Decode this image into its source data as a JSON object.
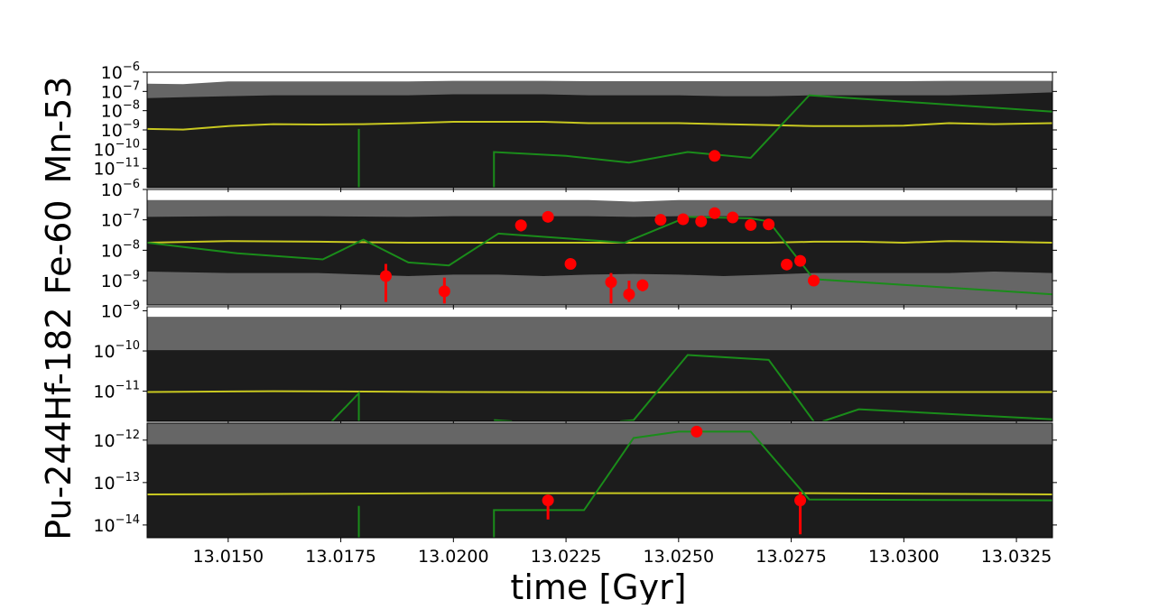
{
  "chart_data": {
    "type": "line",
    "xlabel": "time [Gyr]",
    "xlim": [
      13.0132,
      13.0333
    ],
    "x_ticks": [
      "13.0150",
      "13.0175",
      "13.0200",
      "13.0225",
      "13.0250",
      "13.0275",
      "13.0300",
      "13.0325"
    ],
    "x_tick_values": [
      13.015,
      13.0175,
      13.02,
      13.0225,
      13.025,
      13.0275,
      13.03,
      13.0325
    ],
    "y_scale": "log",
    "colors": {
      "outer_band": "#666666",
      "inner_band": "#1c1c1c",
      "median": "#c8c820",
      "model": "#1a8c1a",
      "data": "#ff0000"
    },
    "panels": [
      {
        "ylabel": "Mn-53",
        "ylim_exp": [
          -12,
          -6
        ],
        "yticks": [
          {
            "base": "10",
            "exp": "−6",
            "value": -6
          },
          {
            "base": "10",
            "exp": "−7",
            "value": -7
          },
          {
            "base": "10",
            "exp": "−8",
            "value": -8
          },
          {
            "base": "10",
            "exp": "−9",
            "value": -9
          },
          {
            "base": "10",
            "exp": "−10",
            "value": -10
          },
          {
            "base": "10",
            "exp": "−11",
            "value": -11
          }
        ],
        "band_x": [
          13.0132,
          13.014,
          13.015,
          13.016,
          13.017,
          13.018,
          13.019,
          13.02,
          13.021,
          13.022,
          13.023,
          13.024,
          13.025,
          13.026,
          13.027,
          13.028,
          13.029,
          13.03,
          13.031,
          13.032,
          13.0333
        ],
        "outer_upper": [
          -6.6,
          -6.62,
          -6.48,
          -6.48,
          -6.48,
          -6.48,
          -6.48,
          -6.45,
          -6.45,
          -6.45,
          -6.47,
          -6.47,
          -6.47,
          -6.47,
          -6.47,
          -6.47,
          -6.47,
          -6.47,
          -6.45,
          -6.45,
          -6.45
        ],
        "inner_upper": [
          -7.35,
          -7.3,
          -7.25,
          -7.2,
          -7.2,
          -7.2,
          -7.2,
          -7.15,
          -7.15,
          -7.15,
          -7.2,
          -7.2,
          -7.2,
          -7.25,
          -7.25,
          -7.2,
          -7.2,
          -7.2,
          -7.2,
          -7.15,
          -7.05
        ],
        "median": [
          -8.95,
          -8.98,
          -8.8,
          -8.7,
          -8.72,
          -8.7,
          -8.65,
          -8.58,
          -8.58,
          -8.58,
          -8.65,
          -8.65,
          -8.65,
          -8.7,
          -8.75,
          -8.8,
          -8.8,
          -8.78,
          -8.65,
          -8.7,
          -8.65
        ],
        "model_segments": [
          [
            [
              13.0179,
              -12
            ],
            [
              13.0179,
              -8.95
            ]
          ],
          [
            [
              13.0209,
              -12
            ],
            [
              13.0209,
              -10.15
            ],
            [
              13.0225,
              -10.35
            ],
            [
              13.0239,
              -10.7
            ],
            [
              13.0252,
              -10.15
            ],
            [
              13.0266,
              -10.45
            ],
            [
              13.0279,
              -7.2
            ],
            [
              13.0333,
              -8.05
            ]
          ]
        ],
        "points": [
          {
            "x": 13.0258,
            "y": -10.35,
            "err_lo": 0,
            "err_hi": 0
          }
        ]
      },
      {
        "ylabel": "Fe-60",
        "ylim_exp": [
          -9.8,
          -6
        ],
        "yticks": [
          {
            "base": "10",
            "exp": "−6",
            "value": -6
          },
          {
            "base": "10",
            "exp": "−7",
            "value": -7
          },
          {
            "base": "10",
            "exp": "−8",
            "value": -8
          },
          {
            "base": "10",
            "exp": "−9",
            "value": -9
          }
        ],
        "band_x": [
          13.0132,
          13.015,
          13.017,
          13.019,
          13.02,
          13.021,
          13.022,
          13.023,
          13.024,
          13.025,
          13.026,
          13.027,
          13.028,
          13.029,
          13.03,
          13.031,
          13.032,
          13.0333
        ],
        "outer_upper": [
          -6.35,
          -6.35,
          -6.35,
          -6.35,
          -6.35,
          -6.35,
          -6.35,
          -6.35,
          -6.4,
          -6.35,
          -6.35,
          -6.35,
          -6.35,
          -6.35,
          -6.35,
          -6.35,
          -6.35,
          -6.35
        ],
        "inner_upper": [
          -6.9,
          -6.88,
          -6.88,
          -6.9,
          -6.88,
          -6.88,
          -6.88,
          -6.88,
          -6.9,
          -6.88,
          -6.88,
          -6.88,
          -6.88,
          -6.88,
          -6.88,
          -6.88,
          -6.88,
          -6.88
        ],
        "inner_lower": [
          -8.7,
          -8.75,
          -8.75,
          -8.85,
          -8.8,
          -8.8,
          -8.85,
          -8.8,
          -8.78,
          -8.8,
          -8.85,
          -8.8,
          -8.75,
          -8.75,
          -8.75,
          -8.75,
          -8.7,
          -8.75
        ],
        "median": [
          -7.75,
          -7.7,
          -7.72,
          -7.75,
          -7.75,
          -7.75,
          -7.75,
          -7.75,
          -7.75,
          -7.75,
          -7.75,
          -7.75,
          -7.72,
          -7.72,
          -7.75,
          -7.7,
          -7.72,
          -7.75
        ],
        "model_segments": [
          [
            [
              13.0132,
              -7.75
            ],
            [
              13.0152,
              -8.1
            ],
            [
              13.0171,
              -8.3
            ],
            [
              13.018,
              -7.65
            ],
            [
              13.019,
              -8.4
            ],
            [
              13.0199,
              -8.5
            ],
            [
              13.021,
              -7.45
            ],
            [
              13.0238,
              -7.75
            ],
            [
              13.0252,
              -6.9
            ],
            [
              13.0266,
              -6.95
            ],
            [
              13.027,
              -7.05
            ],
            [
              13.028,
              -8.95
            ],
            [
              13.0333,
              -9.45
            ]
          ]
        ],
        "points": [
          {
            "x": 13.0185,
            "y": -8.85,
            "err_lo": 0.85,
            "err_hi": 0.4
          },
          {
            "x": 13.0198,
            "y": -9.35,
            "err_lo": 0.4,
            "err_hi": 0.45
          },
          {
            "x": 13.0215,
            "y": -7.18,
            "err_lo": 0.2,
            "err_hi": 0.1
          },
          {
            "x": 13.0221,
            "y": -6.9,
            "err_lo": 0.1,
            "err_hi": 0.1
          },
          {
            "x": 13.0226,
            "y": -8.45,
            "err_lo": 0,
            "err_hi": 0
          },
          {
            "x": 13.0235,
            "y": -9.05,
            "err_lo": 0.7,
            "err_hi": 0.3
          },
          {
            "x": 13.0239,
            "y": -9.45,
            "err_lo": 0.25,
            "err_hi": 0.45
          },
          {
            "x": 13.0242,
            "y": -9.15,
            "err_lo": 0.2,
            "err_hi": 0.1
          },
          {
            "x": 13.0246,
            "y": -7.0,
            "err_lo": 0,
            "err_hi": 0
          },
          {
            "x": 13.0251,
            "y": -6.98,
            "err_lo": 0,
            "err_hi": 0
          },
          {
            "x": 13.0255,
            "y": -7.05,
            "err_lo": 0,
            "err_hi": 0
          },
          {
            "x": 13.0258,
            "y": -6.78,
            "err_lo": 0,
            "err_hi": 0
          },
          {
            "x": 13.0262,
            "y": -6.92,
            "err_lo": 0,
            "err_hi": 0
          },
          {
            "x": 13.0266,
            "y": -7.17,
            "err_lo": 0,
            "err_hi": 0
          },
          {
            "x": 13.027,
            "y": -7.15,
            "err_lo": 0,
            "err_hi": 0
          },
          {
            "x": 13.0274,
            "y": -8.47,
            "err_lo": 0,
            "err_hi": 0
          },
          {
            "x": 13.0277,
            "y": -8.35,
            "err_lo": 0,
            "err_hi": 0
          },
          {
            "x": 13.028,
            "y": -9.0,
            "err_lo": 0,
            "err_hi": 0
          }
        ]
      },
      {
        "ylabel": "Hf-182",
        "ylim_exp": [
          -11.75,
          -8.9
        ],
        "yticks": [
          {
            "base": "10",
            "exp": "−9",
            "value": -9
          },
          {
            "base": "10",
            "exp": "−10",
            "value": -10
          },
          {
            "base": "10",
            "exp": "−11",
            "value": -11
          }
        ],
        "band_x": [
          13.0132,
          13.016,
          13.02,
          13.024,
          13.028,
          13.0333
        ],
        "outer_upper": [
          -9.15,
          -9.15,
          -9.15,
          -9.15,
          -9.15,
          -9.15
        ],
        "inner_upper": [
          -9.98,
          -9.98,
          -9.98,
          -9.98,
          -9.98,
          -9.98
        ],
        "median": [
          -11.02,
          -11.0,
          -11.02,
          -11.03,
          -11.02,
          -11.02
        ],
        "model_segments": [
          [
            [
              13.0173,
              -11.75
            ],
            [
              13.0179,
              -11.05
            ],
            [
              13.0179,
              -11.75
            ]
          ],
          [
            [
              13.0209,
              -11.72
            ],
            [
              13.0213,
              -11.75
            ]
          ],
          [
            [
              13.0237,
              -11.75
            ],
            [
              13.024,
              -11.72
            ],
            [
              13.0252,
              -10.1
            ],
            [
              13.027,
              -10.22
            ],
            [
              13.028,
              -11.75
            ]
          ],
          [
            [
              13.0282,
              -11.75
            ],
            [
              13.029,
              -11.45
            ],
            [
              13.0333,
              -11.7
            ]
          ]
        ],
        "points": []
      },
      {
        "ylabel": "Pu-244",
        "ylim_exp": [
          -14.3,
          -11.6
        ],
        "yticks": [
          {
            "base": "10",
            "exp": "−12",
            "value": -12
          },
          {
            "base": "10",
            "exp": "−13",
            "value": -13
          },
          {
            "base": "10",
            "exp": "−14",
            "value": -14
          }
        ],
        "band_x": [
          13.0132,
          13.016,
          13.02,
          13.024,
          13.028,
          13.0333
        ],
        "outer_upper": [
          -11.6,
          -11.6,
          -11.6,
          -11.6,
          -11.6,
          -11.6
        ],
        "inner_upper": [
          -12.1,
          -12.1,
          -12.1,
          -12.1,
          -12.1,
          -12.1
        ],
        "median": [
          -13.28,
          -13.27,
          -13.25,
          -13.25,
          -13.25,
          -13.28
        ],
        "model_segments": [
          [
            [
              13.0179,
              -13.55
            ],
            [
              13.0179,
              -14.3
            ]
          ],
          [
            [
              13.0209,
              -14.3
            ],
            [
              13.0209,
              -13.65
            ],
            [
              13.0229,
              -13.65
            ],
            [
              13.024,
              -11.95
            ],
            [
              13.025,
              -11.8
            ],
            [
              13.0266,
              -11.8
            ],
            [
              13.0279,
              -13.4
            ],
            [
              13.0333,
              -13.42
            ]
          ]
        ],
        "points": [
          {
            "x": 13.0221,
            "y": -13.42,
            "err_lo": 0.45,
            "err_hi": 0.1
          },
          {
            "x": 13.0254,
            "y": -11.8,
            "err_lo": 0,
            "err_hi": 0
          },
          {
            "x": 13.0277,
            "y": -13.42,
            "err_lo": 0.8,
            "err_hi": 0.2
          }
        ]
      }
    ]
  }
}
